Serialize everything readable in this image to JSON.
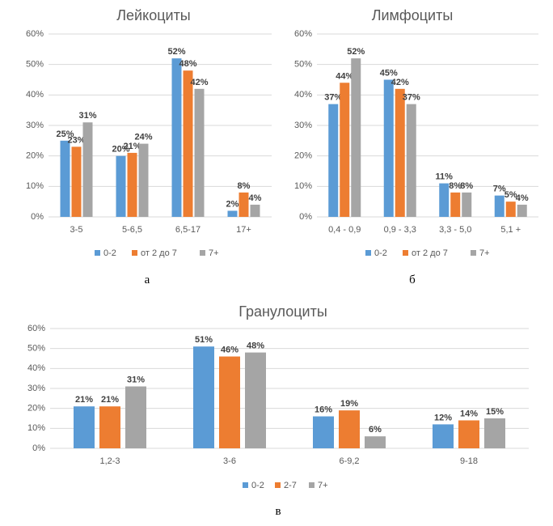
{
  "chart_data": [
    {
      "type": "bar",
      "title": "Лейкоциты",
      "categories": [
        "3-5",
        "5-6,5",
        "6,5-17",
        "17+"
      ],
      "series": [
        {
          "name": "0-2",
          "values": [
            25,
            20,
            52,
            2
          ],
          "color": "#5b9bd5"
        },
        {
          "name": "от 2 до 7",
          "values": [
            23,
            21,
            48,
            8
          ],
          "color": "#ed7d31"
        },
        {
          "name": "7+",
          "values": [
            31,
            24,
            42,
            4
          ],
          "color": "#a5a5a5"
        }
      ],
      "data_labels": [
        [
          "25%",
          "20%",
          "52%",
          "2%"
        ],
        [
          "23%",
          "21%",
          "48%",
          "8%"
        ],
        [
          "31%",
          "24%",
          "42%",
          "4%"
        ]
      ],
      "ylim": [
        0,
        60
      ],
      "yticks": [
        0,
        10,
        20,
        30,
        40,
        50,
        60
      ],
      "ytick_labels": [
        "0%",
        "10%",
        "20%",
        "30%",
        "40%",
        "50%",
        "60%"
      ],
      "grid": true,
      "legend_position": "bottom",
      "caption": "а"
    },
    {
      "type": "bar",
      "title": "Лимфоциты",
      "categories": [
        "0,4 - 0,9",
        "0,9 - 3,3",
        "3,3 - 5,0",
        "5,1 +"
      ],
      "series": [
        {
          "name": "0-2",
          "values": [
            37,
            45,
            11,
            7
          ],
          "color": "#5b9bd5"
        },
        {
          "name": "от 2 до 7",
          "values": [
            44,
            42,
            8,
            5
          ],
          "color": "#ed7d31"
        },
        {
          "name": "7+",
          "values": [
            52,
            37,
            8,
            4
          ],
          "color": "#a5a5a5"
        }
      ],
      "data_labels": [
        [
          "37%",
          "45%",
          "11%",
          "7%"
        ],
        [
          "44%",
          "42%",
          "8%",
          "5%"
        ],
        [
          "52%",
          "37%",
          "8%",
          "4%"
        ]
      ],
      "ylim": [
        0,
        60
      ],
      "yticks": [
        0,
        10,
        20,
        30,
        40,
        50,
        60
      ],
      "ytick_labels": [
        "0%",
        "10%",
        "20%",
        "30%",
        "40%",
        "50%",
        "60%"
      ],
      "grid": true,
      "legend_position": "bottom",
      "caption": "б"
    },
    {
      "type": "bar",
      "title": "Гранулоциты",
      "categories": [
        "1,2-3",
        "3-6",
        "6-9,2",
        "9-18"
      ],
      "series": [
        {
          "name": "0-2",
          "values": [
            21,
            51,
            16,
            12
          ],
          "color": "#5b9bd5"
        },
        {
          "name": "2-7",
          "values": [
            21,
            46,
            19,
            14
          ],
          "color": "#ed7d31"
        },
        {
          "name": "7+",
          "values": [
            31,
            48,
            6,
            15
          ],
          "color": "#a5a5a5"
        }
      ],
      "data_labels": [
        [
          "21%",
          "51%",
          "16%",
          "12%"
        ],
        [
          "21%",
          "46%",
          "19%",
          "14%"
        ],
        [
          "31%",
          "48%",
          "6%",
          "15%"
        ]
      ],
      "ylim": [
        0,
        60
      ],
      "yticks": [
        0,
        10,
        20,
        30,
        40,
        50,
        60
      ],
      "ytick_labels": [
        "0%",
        "10%",
        "20%",
        "30%",
        "40%",
        "50%",
        "60%"
      ],
      "grid": true,
      "legend_position": "bottom",
      "caption": "в"
    }
  ]
}
